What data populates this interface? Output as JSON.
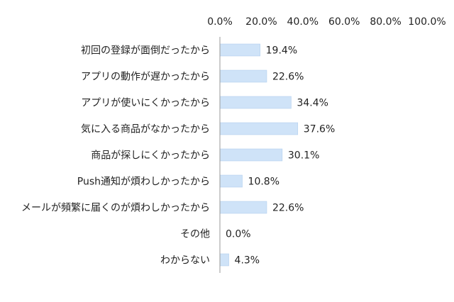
{
  "chart_data": {
    "type": "bar",
    "orientation": "horizontal",
    "categories": [
      "初回の登録が面倒だったから",
      "アプリの動作が遅かったから",
      "アプリが使いにくかったから",
      "気に入る商品がなかったから",
      "商品が探しにくかったから",
      "Push通知が煩わしかったから",
      "メールが頻繁に届くのが煩わしかったから",
      "その他",
      "わからない"
    ],
    "values": [
      19.4,
      22.6,
      34.4,
      37.6,
      30.1,
      10.8,
      22.6,
      0.0,
      4.3
    ],
    "value_labels": [
      "19.4%",
      "22.6%",
      "34.4%",
      "37.6%",
      "30.1%",
      "10.8%",
      "22.6%",
      "0.0%",
      "4.3%"
    ],
    "xlim": [
      0,
      100
    ],
    "x_ticks": [
      0,
      20,
      40,
      60,
      80,
      100
    ],
    "x_tick_labels": [
      "0.0%",
      "20.0%",
      "40.0%",
      "60.0%",
      "80.0%",
      "100.0%"
    ],
    "x_axis_position": "top",
    "grid": false,
    "legend": "none",
    "title": "",
    "xlabel": "",
    "ylabel": "",
    "colors": {
      "bar_fill": "#cfe3f8",
      "bar_stroke": "#a9c9ec",
      "axis": "#999999",
      "text": "#222222"
    }
  }
}
